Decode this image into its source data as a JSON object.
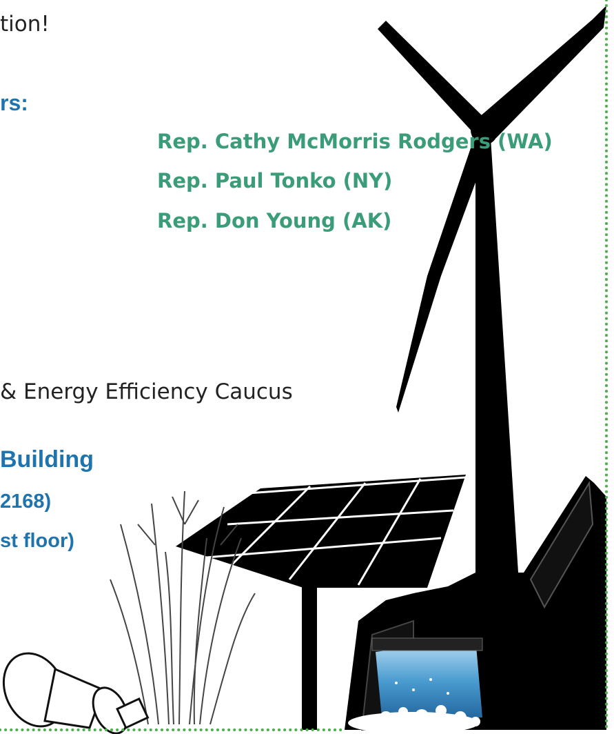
{
  "flyer": {
    "intro_tail": "tion!",
    "sponsors_heading": "rs:",
    "sponsors": [
      "Rep. Cathy McMorris Rodgers (WA)",
      "Rep. Paul Tonko (NY)",
      "Rep. Don Young (AK)"
    ],
    "caucus": "& Energy Efficiency Caucus",
    "location": [
      "Building",
      "2168)",
      "st floor)"
    ]
  }
}
